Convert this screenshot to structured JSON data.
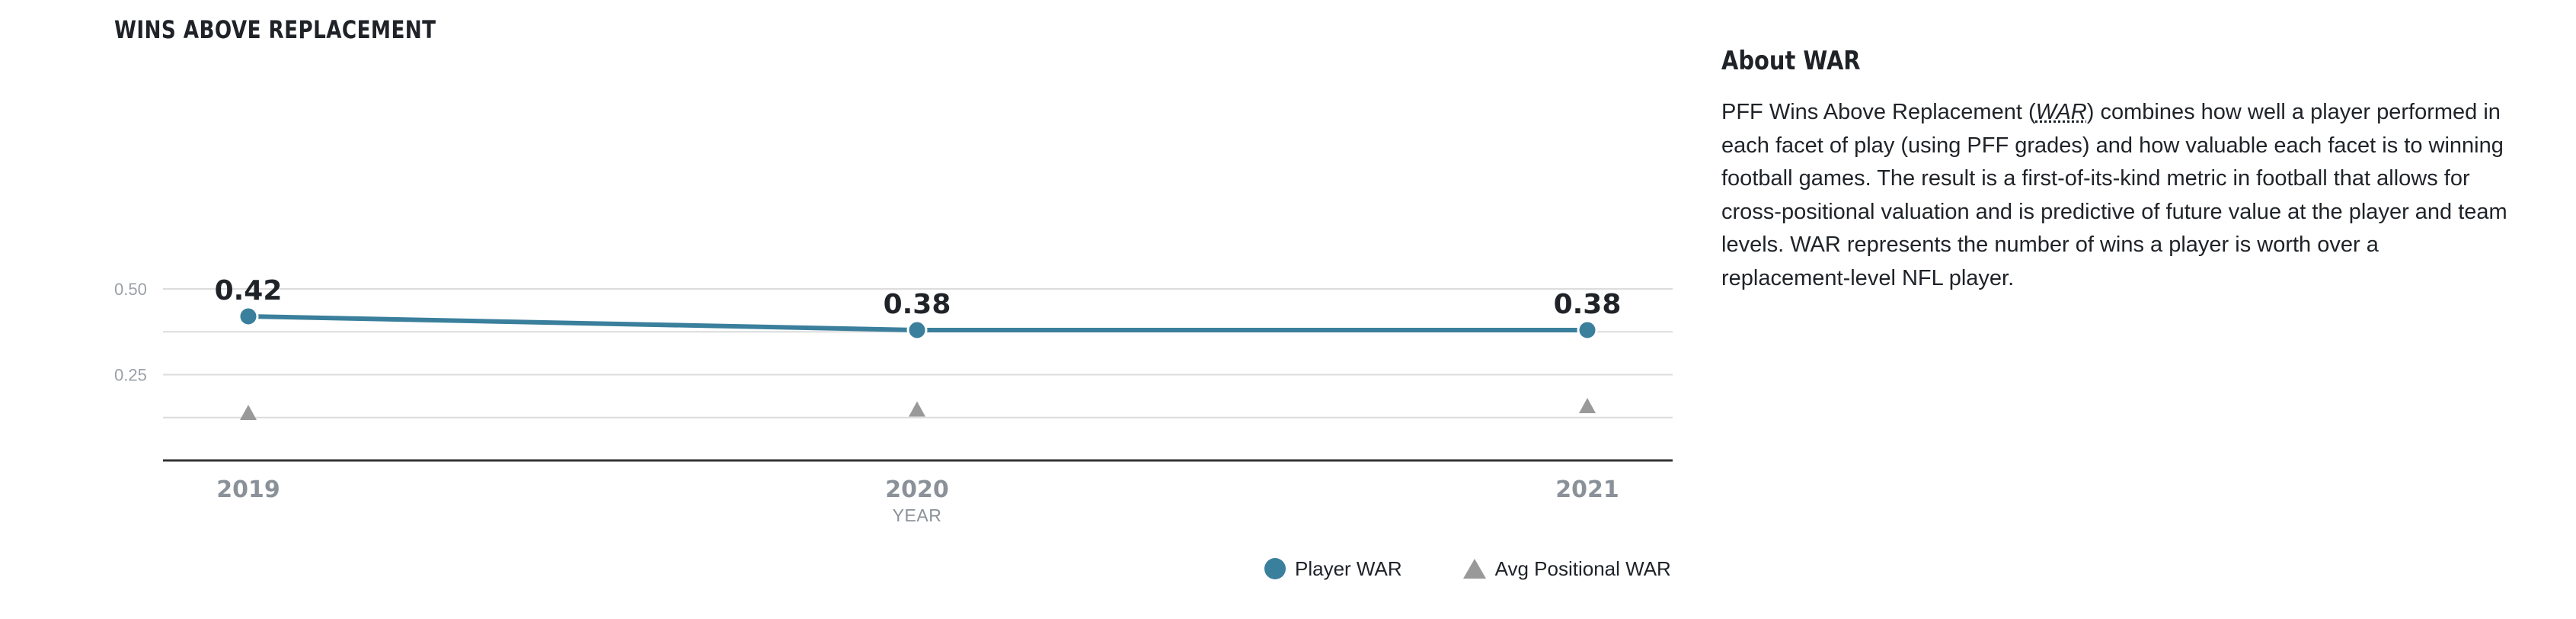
{
  "chart_data": {
    "type": "line",
    "title": "WINS ABOVE REPLACEMENT",
    "xlabel": "YEAR",
    "ylabel": "",
    "categories": [
      "2019",
      "2020",
      "2021"
    ],
    "series": [
      {
        "name": "Player WAR",
        "values": [
          0.42,
          0.38,
          0.38
        ],
        "color": "#3a7f9c",
        "marker": "circle",
        "value_labels": [
          "0.42",
          "0.38",
          "0.38"
        ]
      },
      {
        "name": "Avg Positional WAR",
        "values": [
          0.14,
          0.15,
          0.16
        ],
        "color": "#999999",
        "marker": "triangle"
      }
    ],
    "yticks": [
      0.25,
      0.5
    ],
    "ytick_labels": [
      "0.25",
      "0.50"
    ],
    "ylim": [
      0,
      0.6
    ],
    "grid": true,
    "legend": "bottom-right"
  },
  "about": {
    "title": "About WAR",
    "text_before": "PFF Wins Above Replacement (",
    "abbr": "WAR",
    "text_after": ") combines how well a player performed in each facet of play (using PFF grades) and how valuable each facet is to winning football games. The result is a first-of-its-kind metric in football that allows for cross-positional valuation and is predictive of future value at the player and team levels. WAR represents the number of wins a player is worth over a replacement-level NFL player."
  }
}
